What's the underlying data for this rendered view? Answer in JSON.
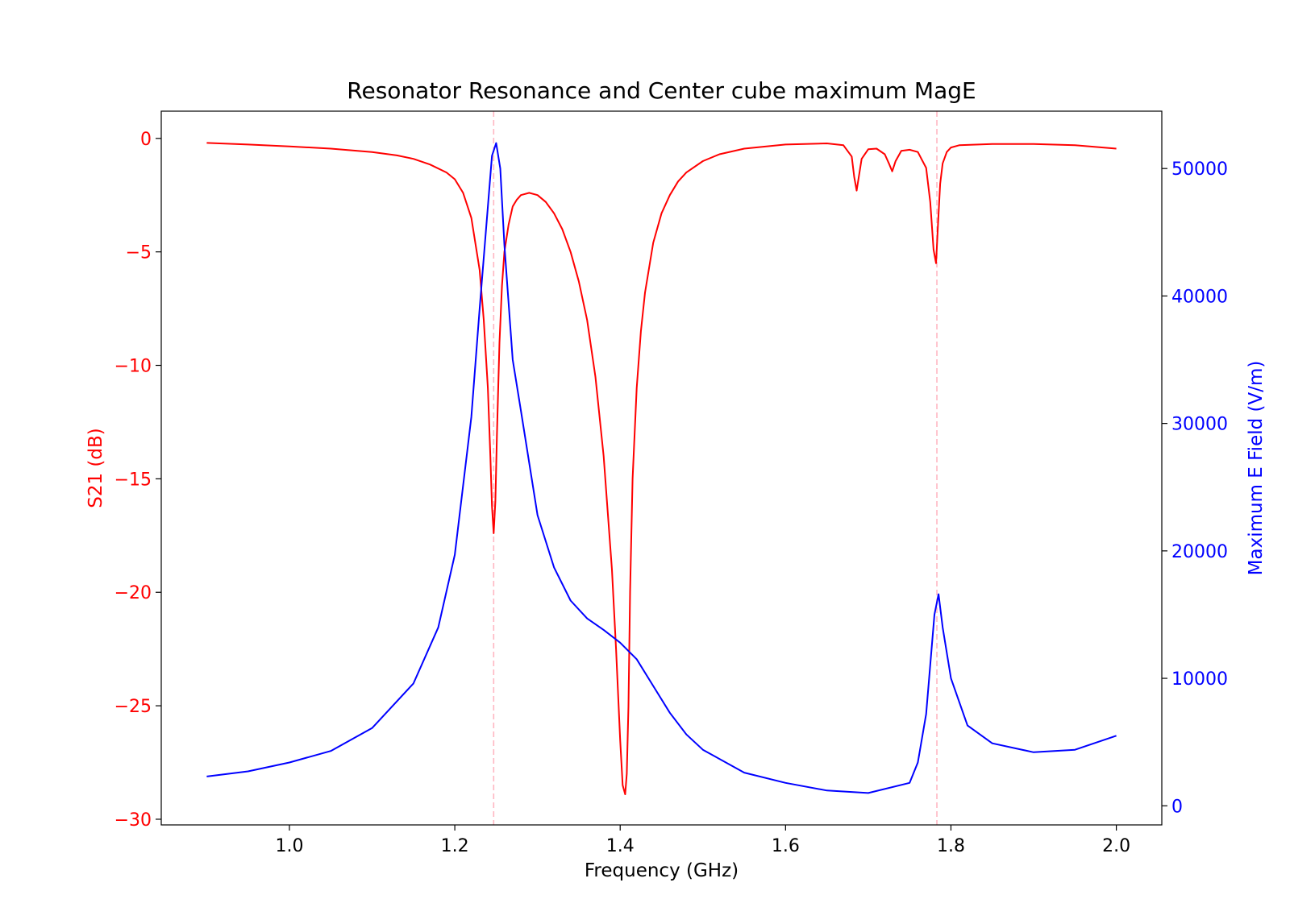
{
  "chart_data": {
    "type": "line",
    "title": "Resonator Resonance and Center cube maximum MagE",
    "xlabel": "Frequency (GHz)",
    "y_left_label": "S21 (dB)",
    "y_right_label": "Maximum E Field (V/m)",
    "xlim": [
      0.845,
      2.055
    ],
    "y_left_lim": [
      -30.25,
      1.2
    ],
    "y_right_lim": [
      -1500,
      54500
    ],
    "x_ticks": [
      1.0,
      1.2,
      1.4,
      1.6,
      1.8,
      2.0
    ],
    "x_tick_labels": [
      "1.0",
      "1.2",
      "1.4",
      "1.6",
      "1.8",
      "2.0"
    ],
    "y_left_ticks": [
      0,
      -5,
      -10,
      -15,
      -20,
      -25,
      -30
    ],
    "y_left_tick_labels": [
      "0",
      "−5",
      "−10",
      "−15",
      "−20",
      "−25",
      "−30"
    ],
    "y_right_ticks": [
      0,
      10000,
      20000,
      30000,
      40000,
      50000
    ],
    "y_right_tick_labels": [
      "0",
      "10000",
      "20000",
      "30000",
      "40000",
      "50000"
    ],
    "vlines": [
      1.247,
      1.783
    ],
    "colors": {
      "s21": "#ff0000",
      "efield": "#0000ff",
      "vline": "#ffb6c1",
      "axis": "#000000"
    },
    "series": [
      {
        "name": "S21",
        "axis": "left",
        "x": [
          0.9,
          0.95,
          1.0,
          1.05,
          1.1,
          1.13,
          1.15,
          1.17,
          1.19,
          1.2,
          1.21,
          1.22,
          1.23,
          1.235,
          1.24,
          1.243,
          1.245,
          1.247,
          1.249,
          1.251,
          1.254,
          1.257,
          1.26,
          1.265,
          1.27,
          1.275,
          1.28,
          1.29,
          1.3,
          1.31,
          1.32,
          1.33,
          1.34,
          1.35,
          1.36,
          1.37,
          1.38,
          1.39,
          1.395,
          1.4,
          1.403,
          1.406,
          1.408,
          1.41,
          1.412,
          1.415,
          1.42,
          1.425,
          1.43,
          1.44,
          1.45,
          1.46,
          1.47,
          1.48,
          1.5,
          1.52,
          1.55,
          1.6,
          1.65,
          1.67,
          1.68,
          1.683,
          1.686,
          1.689,
          1.692,
          1.7,
          1.71,
          1.72,
          1.725,
          1.729,
          1.733,
          1.74,
          1.75,
          1.76,
          1.77,
          1.775,
          1.779,
          1.782,
          1.784,
          1.787,
          1.79,
          1.795,
          1.8,
          1.81,
          1.85,
          1.9,
          1.95,
          2.0
        ],
        "values": [
          -0.2,
          -0.27,
          -0.35,
          -0.45,
          -0.6,
          -0.75,
          -0.9,
          -1.15,
          -1.5,
          -1.8,
          -2.4,
          -3.5,
          -5.8,
          -8.0,
          -11.0,
          -14.0,
          -16.2,
          -17.4,
          -16.0,
          -13.0,
          -9.0,
          -6.5,
          -5.0,
          -3.8,
          -3.0,
          -2.7,
          -2.5,
          -2.4,
          -2.5,
          -2.8,
          -3.3,
          -4.0,
          -5.0,
          -6.3,
          -8.0,
          -10.5,
          -14.0,
          -19.0,
          -22.5,
          -26.5,
          -28.5,
          -28.9,
          -28.0,
          -25.0,
          -20.0,
          -15.0,
          -11.0,
          -8.5,
          -6.8,
          -4.6,
          -3.3,
          -2.5,
          -1.9,
          -1.5,
          -1.0,
          -0.7,
          -0.45,
          -0.27,
          -0.22,
          -0.3,
          -0.8,
          -1.7,
          -2.3,
          -1.6,
          -0.9,
          -0.48,
          -0.45,
          -0.7,
          -1.1,
          -1.45,
          -1.0,
          -0.55,
          -0.5,
          -0.6,
          -1.3,
          -2.8,
          -4.9,
          -5.5,
          -4.0,
          -2.0,
          -1.1,
          -0.6,
          -0.4,
          -0.3,
          -0.25,
          -0.25,
          -0.3,
          -0.45
        ]
      },
      {
        "name": "Maximum E Field",
        "axis": "right",
        "x": [
          0.9,
          0.95,
          1.0,
          1.05,
          1.1,
          1.15,
          1.18,
          1.2,
          1.22,
          1.23,
          1.24,
          1.245,
          1.25,
          1.255,
          1.26,
          1.27,
          1.28,
          1.3,
          1.32,
          1.34,
          1.36,
          1.38,
          1.4,
          1.42,
          1.44,
          1.46,
          1.48,
          1.5,
          1.55,
          1.6,
          1.65,
          1.7,
          1.75,
          1.76,
          1.77,
          1.78,
          1.785,
          1.79,
          1.8,
          1.82,
          1.85,
          1.9,
          1.95,
          2.0
        ],
        "values": [
          2300,
          2700,
          3400,
          4300,
          6100,
          9600,
          14000,
          19700,
          30500,
          39000,
          47000,
          51000,
          52000,
          50000,
          44000,
          35000,
          31000,
          22800,
          18700,
          16100,
          14700,
          13800,
          12800,
          11500,
          9400,
          7300,
          5600,
          4400,
          2600,
          1800,
          1200,
          1000,
          1800,
          3400,
          7200,
          15000,
          16600,
          14000,
          10000,
          6300,
          4900,
          4200,
          4400,
          5500
        ]
      }
    ]
  }
}
